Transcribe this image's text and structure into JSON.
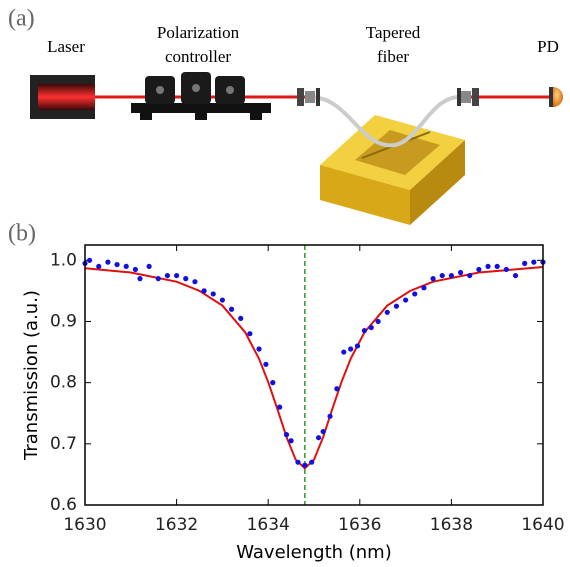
{
  "panel_a": {
    "label": "(a)",
    "laser": "Laser",
    "polarization_controller": [
      "Polarization",
      "controller"
    ],
    "tapered_fiber": [
      "Tapered",
      "fiber"
    ],
    "detector": "PD"
  },
  "chart_data": {
    "type": "scatter",
    "panel_label": "(b)",
    "xlabel": "Wavelength (nm)",
    "ylabel": "Transmission (a.u.)",
    "xlim": [
      1630,
      1640
    ],
    "ylim": [
      0.6,
      1.025
    ],
    "xticks": [
      1630,
      1632,
      1634,
      1636,
      1638,
      1640
    ],
    "yticks": [
      0.6,
      0.7,
      0.8,
      0.9,
      {
        "value": 1,
        "label": "1.0"
      }
    ],
    "color": "#1010e0",
    "x": [
      1630.0,
      1630.1,
      1630.3,
      1630.5,
      1630.7,
      1630.9,
      1631.1,
      1631.2,
      1631.4,
      1631.6,
      1631.8,
      1632.0,
      1632.2,
      1632.4,
      1632.6,
      1632.8,
      1633.0,
      1633.2,
      1633.4,
      1633.6,
      1633.8,
      1633.95,
      1634.1,
      1634.25,
      1634.4,
      1634.5,
      1634.65,
      1634.8,
      1634.95,
      1635.1,
      1635.2,
      1635.35,
      1635.5,
      1635.65,
      1635.8,
      1635.95,
      1636.1,
      1636.25,
      1636.4,
      1636.6,
      1636.8,
      1637.0,
      1637.2,
      1637.4,
      1637.6,
      1637.8,
      1638.0,
      1638.2,
      1638.4,
      1638.6,
      1638.8,
      1639.0,
      1639.2,
      1639.4,
      1639.6,
      1639.8,
      1640.0
    ],
    "values": [
      0.995,
      1.0,
      0.99,
      0.997,
      0.993,
      0.99,
      0.985,
      0.97,
      0.99,
      0.97,
      0.975,
      0.975,
      0.97,
      0.965,
      0.95,
      0.945,
      0.935,
      0.92,
      0.905,
      0.88,
      0.855,
      0.83,
      0.8,
      0.76,
      0.715,
      0.705,
      0.67,
      0.665,
      0.67,
      0.71,
      0.72,
      0.745,
      0.79,
      0.85,
      0.855,
      0.86,
      0.885,
      0.89,
      0.9,
      0.915,
      0.925,
      0.935,
      0.945,
      0.955,
      0.97,
      0.975,
      0.975,
      0.98,
      0.975,
      0.985,
      0.99,
      0.99,
      0.985,
      0.975,
      0.995,
      0.997,
      0.997
    ],
    "fit": {
      "type": "line",
      "color": "#e01010",
      "x": [
        1630,
        1631,
        1632,
        1632.5,
        1633,
        1633.5,
        1633.8,
        1634,
        1634.2,
        1634.4,
        1634.6,
        1634.8,
        1635,
        1635.2,
        1635.4,
        1635.6,
        1635.8,
        1636.1,
        1636.6,
        1637.1,
        1637.6,
        1638.6,
        1640
      ],
      "values": [
        0.987,
        0.98,
        0.965,
        0.95,
        0.926,
        0.882,
        0.839,
        0.801,
        0.757,
        0.711,
        0.674,
        0.66,
        0.674,
        0.711,
        0.757,
        0.801,
        0.839,
        0.882,
        0.926,
        0.95,
        0.965,
        0.98,
        0.989
      ]
    },
    "vline": {
      "x": 1634.8,
      "color": "#2a9a2a"
    }
  }
}
